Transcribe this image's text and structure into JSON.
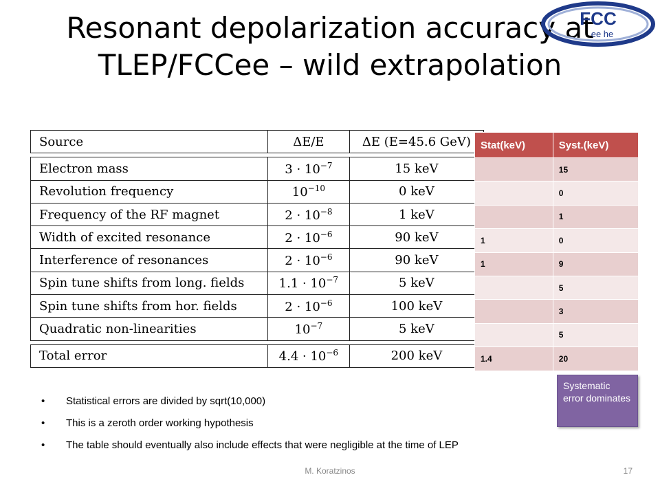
{
  "slide": {
    "title_line1": "Resonant depolarization accuracy at",
    "title_line2": "TLEP/FCCee – wild extrapolation",
    "logo_text": "FCC",
    "logo_subtext": "ee he"
  },
  "source_table": {
    "headers": [
      "Source",
      "ΔE/E",
      "ΔE (E=45.6 GeV)"
    ],
    "rows": [
      {
        "source": "Electron mass",
        "rel": "3 · 10",
        "rel_exp": "−7",
        "abs": "15 keV"
      },
      {
        "source": "Revolution frequency",
        "rel": "10",
        "rel_exp": "−10",
        "abs": "0 keV"
      },
      {
        "source": "Frequency of the RF magnet",
        "rel": "2 · 10",
        "rel_exp": "−8",
        "abs": "1 keV"
      },
      {
        "source": "Width of excited resonance",
        "rel": "2 · 10",
        "rel_exp": "−6",
        "abs": "90 keV"
      },
      {
        "source": "Interference of resonances",
        "rel": "2 · 10",
        "rel_exp": "−6",
        "abs": "90 keV"
      },
      {
        "source": "Spin tune shifts from long. fields",
        "rel": "1.1 · 10",
        "rel_exp": "−7",
        "abs": "5 keV"
      },
      {
        "source": "Spin tune shifts from hor. fields",
        "rel": "2 · 10",
        "rel_exp": "−6",
        "abs": "100 keV"
      },
      {
        "source": "Quadratic non-linearities",
        "rel": "10",
        "rel_exp": "−7",
        "abs": "5 keV"
      }
    ],
    "total": {
      "source": "Total error",
      "rel": "4.4 · 10",
      "rel_exp": "−6",
      "abs": "200 keV"
    }
  },
  "result_table": {
    "headers": [
      "Stat(keV)",
      "Syst.(keV)"
    ],
    "rows": [
      [
        "",
        "15"
      ],
      [
        "",
        "0"
      ],
      [
        "",
        "1"
      ],
      [
        "1",
        "0"
      ],
      [
        "1",
        "9"
      ],
      [
        "",
        "5"
      ],
      [
        "",
        "3"
      ],
      [
        "",
        "5"
      ],
      [
        "1.4",
        "20"
      ]
    ]
  },
  "callout": "Systematic error dominates",
  "bullets": [
    "Statistical errors are divided by sqrt(10,000)",
    "This is a zeroth order working hypothesis",
    "The table should eventually also include effects that were negligible at the time of LEP"
  ],
  "footer": {
    "author": "M. Koratzinos",
    "page": "17"
  },
  "colors": {
    "table_header": "#c0504d",
    "row_dark": "#e8cfcf",
    "row_light": "#f4e8e8",
    "callout": "#8064a2",
    "logo": "#1f3a8a"
  }
}
